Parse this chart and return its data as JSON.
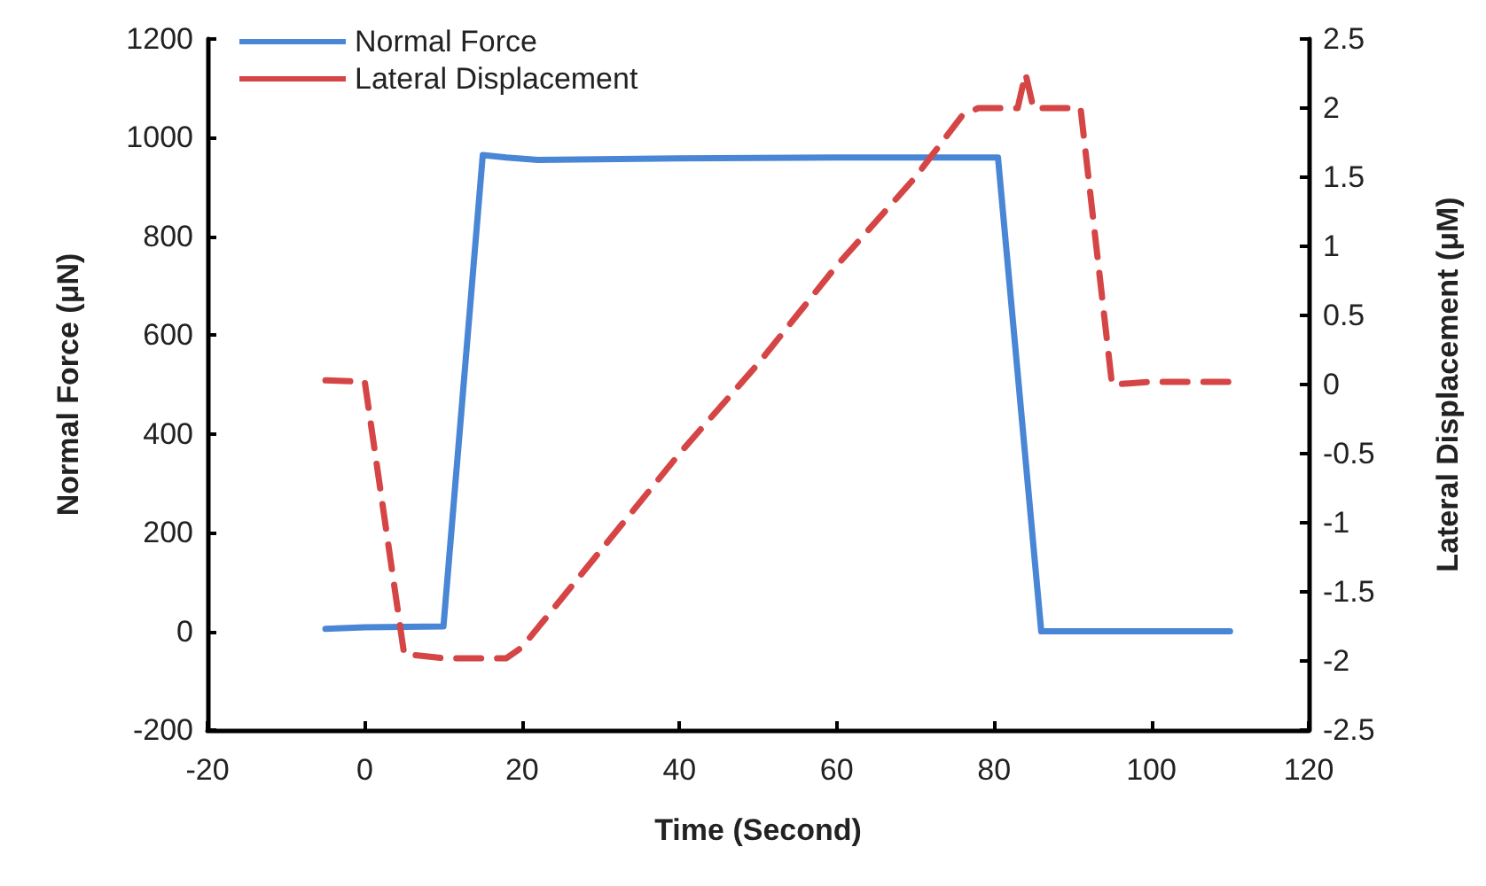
{
  "chart_data": {
    "type": "line",
    "xlabel": "Time (Second)",
    "ylabel": "Normal Force (μN)",
    "y2label": "Lateral Displacement (μM)",
    "xlim": [
      -20,
      120
    ],
    "xticks": [
      -20,
      0,
      20,
      40,
      60,
      80,
      100,
      120
    ],
    "ylim": [
      -200,
      1200
    ],
    "yticks": [
      -200,
      0,
      200,
      400,
      600,
      800,
      1000,
      1200
    ],
    "y2lim": [
      -2.5,
      2.5
    ],
    "y2ticks": [
      -2.5,
      -2,
      -1.5,
      -1,
      -0.5,
      0,
      0.5,
      1,
      1.5,
      2,
      2.5
    ],
    "grid": false,
    "legend": "top left",
    "marker": "none",
    "series": [
      {
        "name": "Normal Force",
        "color": "#4a86d6",
        "line_style": "solid",
        "x": [
          -5,
          0,
          10,
          15,
          18,
          22,
          40,
          60,
          80.5,
          86,
          110
        ],
        "values": [
          5,
          8,
          10,
          965,
          960,
          955,
          958,
          960,
          960,
          0,
          0
        ]
      },
      {
        "name": "Lateral Displacement",
        "color": "#d64545",
        "line_style": "dashed",
        "axis": "y2",
        "x": [
          -5,
          0,
          5,
          10,
          18,
          20,
          30,
          40,
          50,
          60,
          70,
          76,
          78,
          83,
          84,
          85,
          91,
          95,
          100,
          110
        ],
        "values": [
          0.03,
          0.02,
          -1.95,
          -1.98,
          -1.98,
          -1.9,
          -1.2,
          -0.5,
          0.15,
          0.86,
          1.5,
          1.95,
          2.0,
          2.0,
          2.25,
          2.0,
          2.0,
          0,
          0.02,
          0.02
        ]
      }
    ]
  }
}
